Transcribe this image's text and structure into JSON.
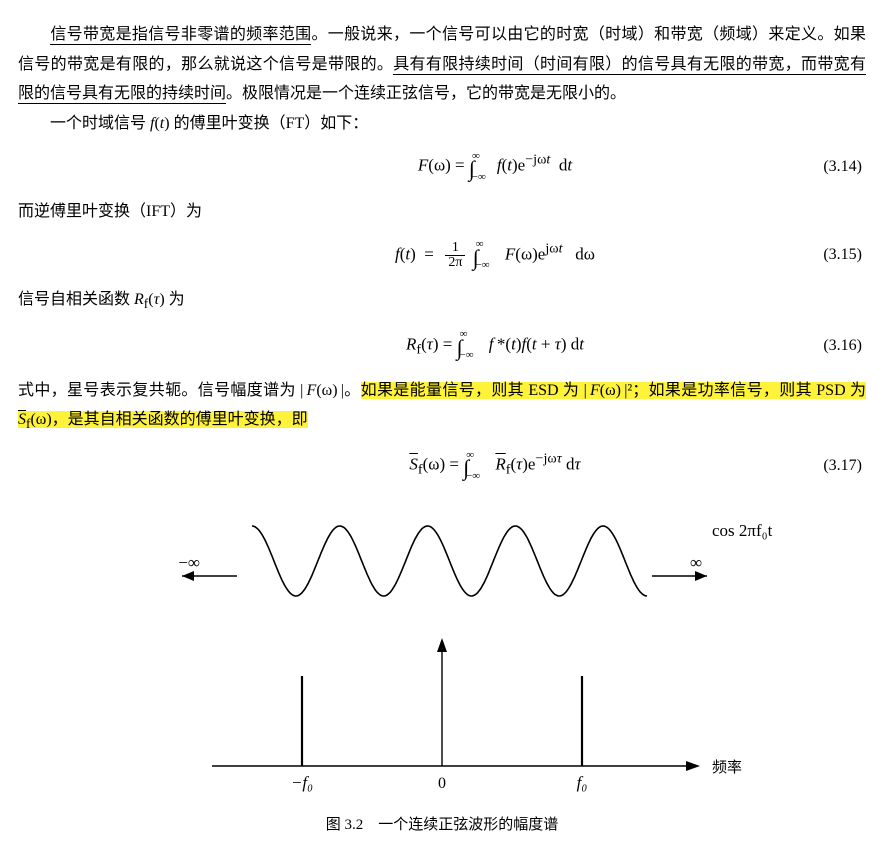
{
  "paragraphs": {
    "p1_seg1": "信号带宽是指信号非零谱的频率范围",
    "p1_seg2": "。一般说来，一个信号可以由它的时宽（时域）和带宽（频域）来定义。如果信号的带宽是有限的，那么就说这个信号是带限的。",
    "p1_seg3": "具有有限持续时间（时间有限）的信号具有无限的带宽，而带宽有限的信号具有无限的持续时间",
    "p1_seg4": "。极限情况是一个连续正弦信号，它的带宽是无限小的。",
    "p2": "一个时域信号 f(t) 的傅里叶变换（FT）如下：",
    "p3": "而逆傅里叶变换（IFT）为",
    "p4": "信号自相关函数 R",
    "p4_sub": "f",
    "p4_tail": "(τ) 为",
    "p5_a": "式中，星号表示复共轭。信号幅度谱为 | F(ω) |。",
    "p5_b": "如果是能量信号，则其 ESD 为 | F(ω) |² ；如果是功率信号，则其 PSD 为 S̄",
    "p5_b_sub": "f",
    "p5_b2": "(ω)，是其自相关函数的傅里叶变换，即"
  },
  "equations": {
    "eq14_num": "(3.14)",
    "eq15_num": "(3.15)",
    "eq16_num": "(3.16)",
    "eq17_num": "(3.17)"
  },
  "figure": {
    "wave_label": "cos 2πf₀t",
    "neg_inf": "−∞",
    "pos_inf": "∞",
    "axis_label": "频率",
    "tick_neg": "−f₀",
    "tick_zero": "0",
    "tick_pos": "f₀",
    "caption": "图 3.2　一个连续正弦波形的幅度谱",
    "wave": {
      "amplitude": 35,
      "periods": 4.5,
      "stroke": "#000",
      "stroke_width": 1.6
    },
    "colors": {
      "line": "#000000",
      "bg": "#ffffff"
    }
  },
  "style": {
    "font_size_body": 16,
    "font_size_eq": 17,
    "highlight_color": "#fff23a",
    "text_color": "#000000"
  }
}
